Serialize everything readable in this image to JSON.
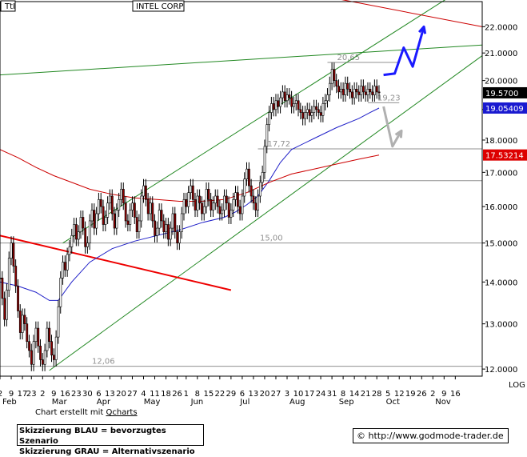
{
  "header": {
    "ticker": "TtI",
    "company": "INTEL CORP"
  },
  "chart_data": {
    "type": "candlestick",
    "title": "INTEL CORP",
    "y_scale": "log",
    "ylim": [
      11.85,
      23.0
    ],
    "y_ticks": [
      "12.0000",
      "13.0000",
      "14.0000",
      "15.0000",
      "16.0000",
      "17.0000",
      "18.0000",
      "19.0000",
      "20.0000",
      "21.0000",
      "22.0000"
    ],
    "y_tick_values": [
      12,
      13,
      14,
      15,
      16,
      17,
      18,
      19,
      20,
      21,
      22
    ],
    "x_axis_type": "trading-day index",
    "x_range": [
      0,
      215
    ],
    "x_day_labels": [
      {
        "i": 0,
        "label": "2"
      },
      {
        "i": 5,
        "label": "9"
      },
      {
        "i": 10,
        "label": "17"
      },
      {
        "i": 14,
        "label": "23"
      },
      {
        "i": 19,
        "label": "2"
      },
      {
        "i": 24,
        "label": "9"
      },
      {
        "i": 29,
        "label": "16"
      },
      {
        "i": 34,
        "label": "23"
      },
      {
        "i": 39,
        "label": "30"
      },
      {
        "i": 44,
        "label": "6"
      },
      {
        "i": 49,
        "label": "13"
      },
      {
        "i": 54,
        "label": "20"
      },
      {
        "i": 59,
        "label": "27"
      },
      {
        "i": 64,
        "label": "4"
      },
      {
        "i": 69,
        "label": "11"
      },
      {
        "i": 74,
        "label": "18"
      },
      {
        "i": 79,
        "label": "26"
      },
      {
        "i": 83,
        "label": "1"
      },
      {
        "i": 88,
        "label": "8"
      },
      {
        "i": 93,
        "label": "15"
      },
      {
        "i": 98,
        "label": "22"
      },
      {
        "i": 103,
        "label": "29"
      },
      {
        "i": 108,
        "label": "6"
      },
      {
        "i": 113,
        "label": "13"
      },
      {
        "i": 118,
        "label": "20"
      },
      {
        "i": 123,
        "label": "27"
      },
      {
        "i": 128,
        "label": "3"
      },
      {
        "i": 133,
        "label": "10"
      },
      {
        "i": 138,
        "label": "17"
      },
      {
        "i": 143,
        "label": "24"
      },
      {
        "i": 148,
        "label": "31"
      },
      {
        "i": 153,
        "label": "8"
      },
      {
        "i": 158,
        "label": "14"
      },
      {
        "i": 163,
        "label": "21"
      },
      {
        "i": 168,
        "label": "28"
      },
      {
        "i": 173,
        "label": "5"
      },
      {
        "i": 178,
        "label": "12"
      },
      {
        "i": 183,
        "label": "19"
      },
      {
        "i": 188,
        "label": "26"
      },
      {
        "i": 193,
        "label": "2"
      },
      {
        "i": 198,
        "label": "9"
      },
      {
        "i": 203,
        "label": "16"
      }
    ],
    "x_month_labels": [
      {
        "i": 0,
        "label": "Feb"
      },
      {
        "i": 22,
        "label": "Mar"
      },
      {
        "i": 42,
        "label": "Apr"
      },
      {
        "i": 63,
        "label": "May"
      },
      {
        "i": 84,
        "label": "Jun"
      },
      {
        "i": 106,
        "label": "Jul"
      },
      {
        "i": 128,
        "label": "Aug"
      },
      {
        "i": 150,
        "label": "Sep"
      },
      {
        "i": 171,
        "label": "Oct"
      },
      {
        "i": 193,
        "label": "Nov"
      }
    ],
    "log_label": "LOG",
    "series": [
      {
        "name": "close",
        "kind": "candlestick",
        "points": [
          [
            0,
            14.1
          ],
          [
            1,
            13.6
          ],
          [
            2,
            13.1
          ],
          [
            3,
            13.8
          ],
          [
            4,
            14.6
          ],
          [
            5,
            15.0
          ],
          [
            6,
            14.4
          ],
          [
            7,
            13.9
          ],
          [
            8,
            13.3
          ],
          [
            9,
            12.8
          ],
          [
            10,
            13.2
          ],
          [
            11,
            13.0
          ],
          [
            12,
            12.6
          ],
          [
            13,
            12.4
          ],
          [
            14,
            12.1
          ],
          [
            15,
            12.6
          ],
          [
            16,
            12.9
          ],
          [
            17,
            12.5
          ],
          [
            18,
            12.2
          ],
          [
            19,
            12.1
          ],
          [
            20,
            12.4
          ],
          [
            21,
            12.9
          ],
          [
            22,
            12.6
          ],
          [
            23,
            12.3
          ],
          [
            24,
            12.2
          ],
          [
            25,
            12.7
          ],
          [
            26,
            13.4
          ],
          [
            27,
            14.1
          ],
          [
            28,
            14.5
          ],
          [
            29,
            14.3
          ],
          [
            30,
            14.7
          ],
          [
            31,
            14.9
          ],
          [
            32,
            15.2
          ],
          [
            33,
            15.5
          ],
          [
            34,
            15.1
          ],
          [
            35,
            15.3
          ],
          [
            36,
            15.7
          ],
          [
            37,
            15.4
          ],
          [
            38,
            14.9
          ],
          [
            39,
            15.0
          ],
          [
            40,
            15.6
          ],
          [
            41,
            15.9
          ],
          [
            42,
            15.4
          ],
          [
            43,
            15.8
          ],
          [
            44,
            16.2
          ],
          [
            45,
            16.0
          ],
          [
            46,
            15.5
          ],
          [
            47,
            15.7
          ],
          [
            48,
            16.1
          ],
          [
            49,
            16.3
          ],
          [
            50,
            15.8
          ],
          [
            51,
            15.4
          ],
          [
            52,
            15.9
          ],
          [
            53,
            16.2
          ],
          [
            54,
            16.5
          ],
          [
            55,
            16.1
          ],
          [
            56,
            15.6
          ],
          [
            57,
            15.5
          ],
          [
            58,
            15.9
          ],
          [
            59,
            16.1
          ],
          [
            60,
            15.7
          ],
          [
            61,
            15.3
          ],
          [
            62,
            15.6
          ],
          [
            63,
            16.3
          ],
          [
            64,
            16.6
          ],
          [
            65,
            16.2
          ],
          [
            66,
            15.8
          ],
          [
            67,
            16.1
          ],
          [
            68,
            15.6
          ],
          [
            69,
            15.2
          ],
          [
            70,
            15.4
          ],
          [
            71,
            15.9
          ],
          [
            72,
            15.6
          ],
          [
            73,
            15.3
          ],
          [
            74,
            15.5
          ],
          [
            75,
            15.1
          ],
          [
            76,
            15.4
          ],
          [
            77,
            15.8
          ],
          [
            78,
            15.3
          ],
          [
            79,
            15.0
          ],
          [
            80,
            15.3
          ],
          [
            81,
            15.8
          ],
          [
            82,
            16.2
          ],
          [
            83,
            16.0
          ],
          [
            84,
            16.4
          ],
          [
            85,
            16.6
          ],
          [
            86,
            16.2
          ],
          [
            87,
            15.9
          ],
          [
            88,
            16.3
          ],
          [
            89,
            16.1
          ],
          [
            90,
            15.8
          ],
          [
            91,
            16.0
          ],
          [
            92,
            16.5
          ],
          [
            93,
            16.2
          ],
          [
            94,
            15.9
          ],
          [
            95,
            16.1
          ],
          [
            96,
            16.3
          ],
          [
            97,
            16.0
          ],
          [
            98,
            15.8
          ],
          [
            99,
            15.9
          ],
          [
            100,
            16.3
          ],
          [
            101,
            16.1
          ],
          [
            102,
            15.7
          ],
          [
            103,
            15.9
          ],
          [
            104,
            16.2
          ],
          [
            105,
            16.4
          ],
          [
            106,
            16.0
          ],
          [
            107,
            15.8
          ],
          [
            108,
            16.3
          ],
          [
            109,
            16.8
          ],
          [
            110,
            17.1
          ],
          [
            111,
            16.6
          ],
          [
            112,
            16.3
          ],
          [
            113,
            16.1
          ],
          [
            114,
            15.9
          ],
          [
            115,
            16.3
          ],
          [
            116,
            16.7
          ],
          [
            117,
            17.0
          ],
          [
            118,
            17.8
          ],
          [
            119,
            18.5
          ],
          [
            120,
            18.9
          ],
          [
            121,
            19.2
          ],
          [
            122,
            19.0
          ],
          [
            123,
            19.3
          ],
          [
            124,
            19.1
          ],
          [
            125,
            19.4
          ],
          [
            126,
            19.6
          ],
          [
            127,
            19.3
          ],
          [
            128,
            19.5
          ],
          [
            129,
            19.4
          ],
          [
            130,
            19.1
          ],
          [
            131,
            19.2
          ],
          [
            132,
            19.3
          ],
          [
            133,
            19.0
          ],
          [
            134,
            18.9
          ],
          [
            135,
            18.7
          ],
          [
            136,
            18.9
          ],
          [
            137,
            19.0
          ],
          [
            138,
            18.8
          ],
          [
            139,
            18.9
          ],
          [
            140,
            19.1
          ],
          [
            141,
            19.0
          ],
          [
            142,
            18.9
          ],
          [
            143,
            18.8
          ],
          [
            144,
            19.2
          ],
          [
            145,
            19.3
          ],
          [
            146,
            19.5
          ],
          [
            147,
            19.9
          ],
          [
            148,
            20.4
          ],
          [
            149,
            20.0
          ],
          [
            150,
            19.8
          ],
          [
            151,
            19.6
          ],
          [
            152,
            19.7
          ],
          [
            153,
            19.5
          ],
          [
            154,
            19.9
          ],
          [
            155,
            19.7
          ],
          [
            156,
            19.6
          ],
          [
            157,
            19.4
          ],
          [
            158,
            19.7
          ],
          [
            159,
            19.6
          ],
          [
            160,
            19.5
          ],
          [
            161,
            19.8
          ],
          [
            162,
            19.6
          ],
          [
            163,
            19.5
          ],
          [
            164,
            19.7
          ],
          [
            165,
            19.6
          ],
          [
            166,
            19.5
          ],
          [
            167,
            19.8
          ],
          [
            168,
            19.6
          ],
          [
            169,
            19.57
          ]
        ]
      },
      {
        "name": "ma-blue",
        "kind": "line",
        "color": "#2020c8",
        "points": [
          [
            0,
            14.0
          ],
          [
            8,
            13.9
          ],
          [
            16,
            13.75
          ],
          [
            22,
            13.55
          ],
          [
            26,
            13.55
          ],
          [
            32,
            14.0
          ],
          [
            40,
            14.5
          ],
          [
            50,
            14.85
          ],
          [
            60,
            15.05
          ],
          [
            70,
            15.2
          ],
          [
            80,
            15.35
          ],
          [
            90,
            15.55
          ],
          [
            100,
            15.7
          ],
          [
            105,
            15.85
          ],
          [
            110,
            16.05
          ],
          [
            115,
            16.3
          ],
          [
            120,
            16.75
          ],
          [
            125,
            17.3
          ],
          [
            130,
            17.7
          ],
          [
            140,
            18.05
          ],
          [
            150,
            18.4
          ],
          [
            160,
            18.7
          ],
          [
            165,
            18.9
          ],
          [
            169,
            19.05
          ]
        ]
      },
      {
        "name": "ma-red",
        "kind": "line",
        "color": "#cc0000",
        "points": [
          [
            0,
            17.7
          ],
          [
            8,
            17.45
          ],
          [
            16,
            17.15
          ],
          [
            24,
            16.9
          ],
          [
            32,
            16.7
          ],
          [
            40,
            16.5
          ],
          [
            50,
            16.35
          ],
          [
            60,
            16.25
          ],
          [
            70,
            16.2
          ],
          [
            80,
            16.15
          ],
          [
            90,
            16.15
          ],
          [
            100,
            16.2
          ],
          [
            110,
            16.4
          ],
          [
            120,
            16.7
          ],
          [
            130,
            16.95
          ],
          [
            140,
            17.1
          ],
          [
            150,
            17.25
          ],
          [
            160,
            17.4
          ],
          [
            169,
            17.53
          ]
        ]
      }
    ],
    "trendlines": [
      {
        "name": "green-upper",
        "color": "#228822",
        "from": [
          28,
          15.0
        ],
        "to": [
          204,
          23.4
        ]
      },
      {
        "name": "green-lower",
        "color": "#228822",
        "from": [
          22,
          11.97
        ],
        "to": [
          215,
          20.9
        ]
      },
      {
        "name": "green-top",
        "color": "#228822",
        "from": [
          0,
          20.2
        ],
        "to": [
          215,
          21.3
        ]
      },
      {
        "name": "red-top",
        "color": "#cc0000",
        "from": [
          140,
          23.3
        ],
        "to": [
          215,
          22.0
        ]
      },
      {
        "name": "red-bold-down",
        "color": "#ee0000",
        "from": [
          0,
          15.2
        ],
        "to": [
          103,
          13.8
        ]
      }
    ],
    "levels": [
      {
        "name": "20.65",
        "value": 20.65,
        "from": 146,
        "to": 178,
        "label": "20,65"
      },
      {
        "name": "19.23",
        "value": 19.23,
        "from": 164,
        "to": 178,
        "label": "19,23"
      },
      {
        "name": "17.72",
        "value": 17.72,
        "from": 115,
        "to": 215,
        "label": "17,72"
      },
      {
        "name": "16.75",
        "value": 16.75,
        "from": 64,
        "to": 215,
        "label": ""
      },
      {
        "name": "15.00",
        "value": 15.0,
        "from": 0,
        "to": 215,
        "label": "15,00"
      },
      {
        "name": "12.06",
        "value": 12.06,
        "from": 0,
        "to": 215,
        "label": "12,06"
      }
    ],
    "scenarios": [
      {
        "name": "blue-preferred",
        "color": "#1a1aff",
        "points": [
          [
            171,
            20.2
          ],
          [
            176,
            20.25
          ],
          [
            180,
            21.2
          ],
          [
            184,
            20.5
          ],
          [
            189,
            22.0
          ]
        ]
      },
      {
        "name": "gray-alternative",
        "color": "#b0b0b0",
        "points": [
          [
            171,
            19.1
          ],
          [
            175,
            17.8
          ],
          [
            179,
            18.3
          ]
        ]
      }
    ],
    "price_tags": [
      {
        "name": "close-tag",
        "value": 19.57,
        "label": "19.5700",
        "bg": "#000000",
        "fg": "#ffffff"
      },
      {
        "name": "blue-ma-tag",
        "value": 19.05,
        "label": "19.05409",
        "bg": "#1a1ad0",
        "fg": "#ffffff"
      },
      {
        "name": "red-ma-tag",
        "value": 17.53,
        "label": "17.53214",
        "bg": "#dd0000",
        "fg": "#ffffff"
      }
    ]
  },
  "footer": {
    "credit_prefix": "Chart erstellt mit ",
    "credit_link": "Qcharts",
    "legend_line1": "Skizzierung BLAU = bevorzugtes Szenario",
    "legend_line2": "Skizzierung GRAU = Alternativszenario",
    "copyright": "© http://www.godmode-trader.de"
  }
}
